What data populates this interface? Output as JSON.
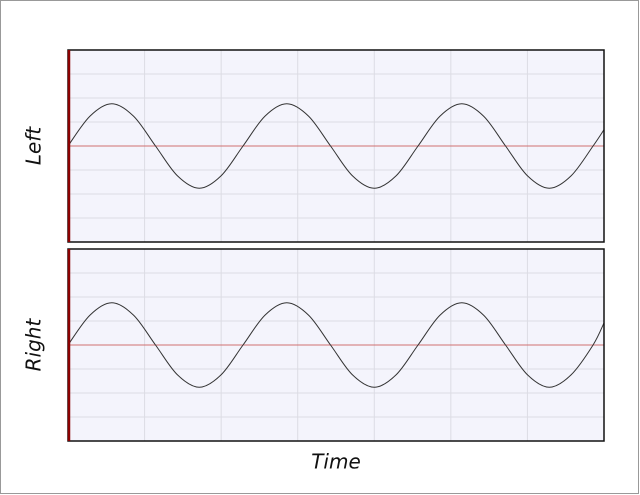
{
  "chart_data": [
    {
      "type": "line",
      "ylabel": "Left",
      "x": [
        0,
        1,
        2,
        3,
        4,
        5,
        6,
        7,
        8,
        9,
        10,
        11,
        12,
        13,
        14,
        15,
        16,
        17,
        18,
        19,
        20,
        21,
        22,
        23,
        24,
        24.5
      ],
      "series": [
        {
          "color": "#333333",
          "values": [
            0,
            0.31,
            0.44,
            0.31,
            0,
            -0.31,
            -0.44,
            -0.31,
            0,
            0.31,
            0.44,
            0.31,
            0,
            -0.31,
            -0.44,
            -0.31,
            0,
            0.31,
            0.44,
            0.31,
            0,
            -0.31,
            -0.44,
            -0.31,
            0,
            0.17
          ]
        }
      ],
      "xlim": [
        0,
        24.5
      ],
      "xticks": [
        3.5,
        7,
        10.5,
        14,
        17.5,
        21
      ],
      "ylim": [
        -1,
        1
      ],
      "yticks": [
        -0.75,
        -0.5,
        -0.25,
        0,
        0.25,
        0.5,
        0.75
      ],
      "grid": true
    },
    {
      "type": "line",
      "ylabel": "Right",
      "xlabel": "Time",
      "x": [
        0,
        1,
        2,
        3,
        4,
        5,
        6,
        7,
        8,
        9,
        10,
        11,
        12,
        13,
        14,
        15,
        16,
        17,
        18,
        19,
        20,
        21,
        22,
        23,
        24,
        24.5
      ],
      "series": [
        {
          "color": "#333333",
          "values": [
            0,
            0.31,
            0.44,
            0.31,
            0,
            -0.31,
            -0.44,
            -0.31,
            0,
            0.31,
            0.44,
            0.31,
            0,
            -0.31,
            -0.44,
            -0.31,
            0,
            0.31,
            0.44,
            0.31,
            0,
            -0.31,
            -0.44,
            -0.31,
            0,
            0.23
          ]
        }
      ],
      "xlim": [
        0,
        24.5
      ],
      "xticks": [
        3.5,
        7,
        10.5,
        14,
        17.5,
        21
      ],
      "ylim": [
        -1,
        1
      ],
      "yticks": [
        -0.75,
        -0.5,
        -0.25,
        0,
        0.25,
        0.5,
        0.75
      ],
      "grid": true
    }
  ]
}
